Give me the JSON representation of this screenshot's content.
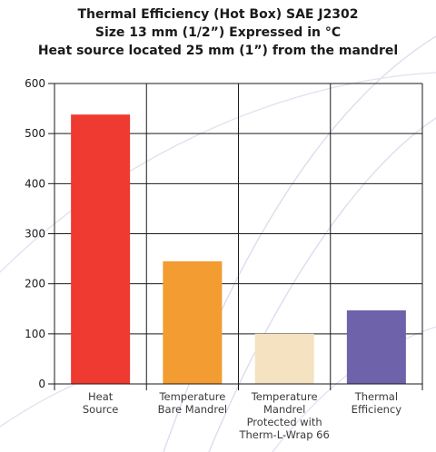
{
  "chart_data": {
    "type": "bar",
    "title_lines": [
      "Thermal Efficiency (Hot Box) SAE J2302",
      "Size 13 mm (1/2”) Expressed in °C",
      "Heat source located 25 mm (1”) from the mandrel"
    ],
    "categories": [
      [
        "Heat",
        "Source"
      ],
      [
        "Temperature",
        "Bare Mandrel"
      ],
      [
        "Temperature",
        "Mandrel",
        "Protected with",
        "Therm-L-Wrap 66"
      ],
      [
        "Thermal",
        "Efficiency"
      ]
    ],
    "values": [
      538,
      245,
      100,
      147
    ],
    "colors": [
      "#ee3a30",
      "#f39c32",
      "#f5e2c0",
      "#6e62aa"
    ],
    "ylim": [
      0,
      600
    ],
    "yticks": [
      0,
      100,
      200,
      300,
      400,
      500,
      600
    ],
    "grid": true
  }
}
